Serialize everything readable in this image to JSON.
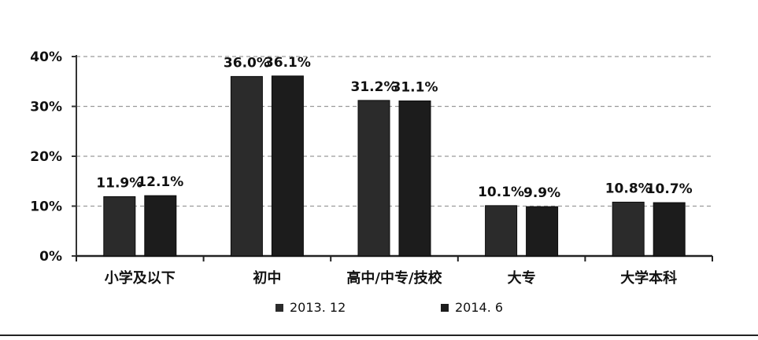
{
  "chart_data": {
    "type": "bar",
    "categories": [
      "小学及以下",
      "初中",
      "高中/中专/技校",
      "大专",
      "大学本科"
    ],
    "series": [
      {
        "name": "2013. 12",
        "values": [
          11.9,
          36.0,
          31.2,
          10.1,
          10.8
        ],
        "color": "#2b2b2b"
      },
      {
        "name": "2014. 6",
        "values": [
          12.1,
          36.1,
          31.1,
          9.9,
          10.7
        ],
        "color": "#1c1c1c"
      }
    ],
    "data_labels": [
      [
        "11.9%",
        "36.0%",
        "31.2%",
        "10.1%",
        "10.8%"
      ],
      [
        "12.1%",
        "36.1%",
        "31.1%",
        "9.9%",
        "10.7%"
      ]
    ],
    "y_ticks": [
      0,
      10,
      20,
      30,
      40
    ],
    "y_tick_labels": [
      "0%",
      "10%",
      "20%",
      "30%",
      "40%"
    ],
    "ylim": [
      0,
      40
    ],
    "grid": true,
    "legend_position": "bottom"
  }
}
